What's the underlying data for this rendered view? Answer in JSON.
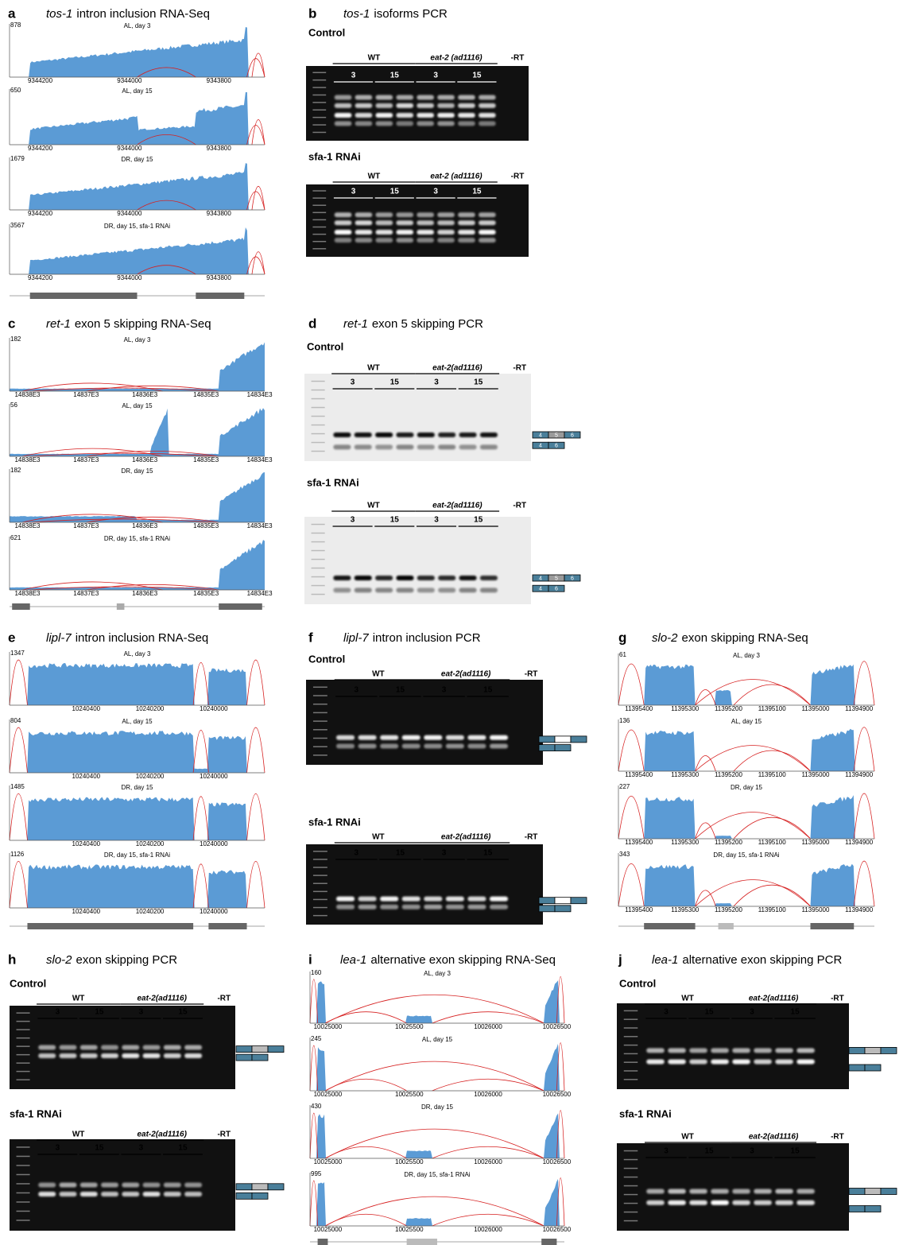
{
  "panels": [
    {
      "letter": "a",
      "gene": "tos-1",
      "title": "intron inclusion RNA-Seq",
      "tracks": [
        {
          "max": 878,
          "label": "AL, day 3"
        },
        {
          "max": 650,
          "label": "AL, day 15"
        },
        {
          "max": 1679,
          "label": "DR, day 15"
        },
        {
          "max": 3567,
          "label": "DR, day 15, sfa-1 RNAi"
        }
      ],
      "xticks": [
        9344200,
        9344000,
        9343800
      ]
    },
    {
      "letter": "b",
      "gene": "tos-1",
      "title": "isoforms PCR",
      "sections": [
        {
          "label": "Control",
          "groups": [
            "WT",
            "eat-2 (ad1116)"
          ],
          "negative": "-RT",
          "days": [
            3,
            15,
            3,
            15
          ]
        },
        {
          "label": "sfa-1 RNAi",
          "groups": [
            "WT",
            "eat-2 (ad1116)"
          ],
          "negative": "-RT",
          "days": [
            3,
            15,
            3,
            15
          ]
        }
      ]
    },
    {
      "letter": "c",
      "gene": "ret-1",
      "title": "exon 5 skipping RNA-Seq",
      "tracks": [
        {
          "max": 182,
          "label": "AL, day 3"
        },
        {
          "max": 56,
          "label": "AL, day 15"
        },
        {
          "max": 182,
          "label": "DR, day 15"
        },
        {
          "max": 621,
          "label": "DR, day 15, sfa-1 RNAi"
        }
      ],
      "xticks": [
        "14838E3",
        "14837E3",
        "14836E3",
        "14835E3",
        "14834E3"
      ]
    },
    {
      "letter": "d",
      "gene": "ret-1",
      "title": "exon 5 skipping PCR",
      "sections": [
        {
          "label": "Control",
          "groups": [
            "WT",
            "eat-2(ad1116)"
          ],
          "negative": "-RT",
          "days": [
            3,
            15,
            3,
            15
          ]
        },
        {
          "label": "sfa-1 RNAi",
          "groups": [
            "WT",
            "eat-2(ad1116)"
          ],
          "negative": "-RT",
          "days": [
            3,
            15,
            3,
            15
          ]
        }
      ],
      "isoforms": [
        [
          "4",
          "5",
          "6"
        ],
        [
          "4",
          "6"
        ]
      ]
    },
    {
      "letter": "e",
      "gene": "lipl-7",
      "title": "intron inclusion RNA-Seq",
      "tracks": [
        {
          "max": 1347,
          "label": "AL, day 3"
        },
        {
          "max": 804,
          "label": "AL, day 15"
        },
        {
          "max": 1485,
          "label": "DR, day 15"
        },
        {
          "max": 1126,
          "label": "DR, day 15, sfa-1 RNAi"
        }
      ],
      "xticks": [
        10240400,
        10240200,
        10240000
      ]
    },
    {
      "letter": "f",
      "gene": "lipl-7",
      "title": "intron inclusion PCR",
      "sections": [
        {
          "label": "Control",
          "groups": [
            "WT",
            "eat-2(ad1116)"
          ],
          "negative": "-RT",
          "days": [
            3,
            15,
            3,
            15
          ]
        },
        {
          "label": "sfa-1 RNAi",
          "groups": [
            "WT",
            "eat-2(ad1116)"
          ],
          "negative": "-RT",
          "days": [
            3,
            15,
            3,
            15
          ]
        }
      ]
    },
    {
      "letter": "g",
      "gene": "slo-2",
      "title": "exon skipping RNA-Seq",
      "tracks": [
        {
          "max": 61,
          "label": "AL, day 3"
        },
        {
          "max": 136,
          "label": "AL, day 15"
        },
        {
          "max": 227,
          "label": "DR, day 15"
        },
        {
          "max": 343,
          "label": "DR, day 15, sfa-1 RNAi"
        }
      ],
      "xticks": [
        11395400,
        11395300,
        11395200,
        11395100,
        11395000,
        11394900
      ]
    },
    {
      "letter": "h",
      "gene": "slo-2",
      "title": "exon skipping PCR",
      "sections": [
        {
          "label": "Control",
          "groups": [
            "WT",
            "eat-2(ad1116)"
          ],
          "negative": "-RT",
          "days": [
            3,
            15,
            3,
            15
          ]
        },
        {
          "label": "sfa-1 RNAi",
          "groups": [
            "WT",
            "eat-2(ad1116)"
          ],
          "negative": "-RT",
          "days": [
            3,
            15,
            3,
            15
          ]
        }
      ]
    },
    {
      "letter": "i",
      "gene": "lea-1",
      "title": "alternative exon skipping RNA-Seq",
      "tracks": [
        {
          "max": 160,
          "label": "AL, day 3"
        },
        {
          "max": 245,
          "label": "AL, day 15"
        },
        {
          "max": 430,
          "label": "DR, day 15"
        },
        {
          "max": 995,
          "label": "DR, day 15, sfa-1 RNAi"
        }
      ],
      "xticks": [
        10025000,
        10025500,
        10026000,
        10026500
      ]
    },
    {
      "letter": "j",
      "gene": "lea-1",
      "title": "alternative exon skipping PCR",
      "sections": [
        {
          "label": "Control",
          "groups": [
            "WT",
            "eat-2(ad1116)"
          ],
          "negative": "-RT",
          "days": [
            3,
            15,
            3,
            15
          ]
        },
        {
          "label": "sfa-1 RNAi",
          "groups": [
            "WT",
            "eat-2(ad1116)"
          ],
          "negative": "-RT",
          "days": [
            3,
            15,
            3,
            15
          ]
        }
      ]
    }
  ]
}
